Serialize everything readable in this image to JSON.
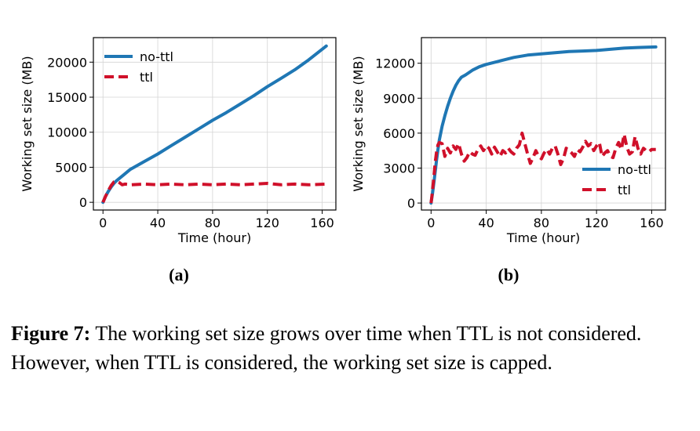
{
  "colors": {
    "no_ttl": "#1f77b4",
    "ttl": "#d0102a"
  },
  "figure": {
    "panel_a_label": "(a)",
    "panel_b_label": "(b)",
    "caption_prefix": "Figure 7:",
    "caption_text": " The working set size grows over time when TTL is not considered. However, when TTL is considered, the working set size is capped."
  },
  "chart_data": [
    {
      "type": "line",
      "xlabel": "Time (hour)",
      "ylabel": "Working set size (MB)",
      "xlim": [
        -7,
        170
      ],
      "ylim": [
        -1100,
        23500
      ],
      "xticks": [
        0,
        40,
        80,
        120,
        160
      ],
      "yticks": [
        0,
        5000,
        10000,
        15000,
        20000
      ],
      "grid": true,
      "legend_position": "top-left",
      "series": [
        {
          "name": "no-ttl",
          "style": "solid",
          "x": [
            0,
            2,
            4,
            6,
            8,
            10,
            15,
            20,
            30,
            40,
            50,
            60,
            70,
            80,
            90,
            100,
            110,
            120,
            130,
            140,
            150,
            163
          ],
          "y": [
            0,
            900,
            1600,
            2200,
            2700,
            3100,
            3900,
            4700,
            5800,
            6900,
            8100,
            9300,
            10500,
            11700,
            12800,
            14000,
            15200,
            16500,
            17700,
            18900,
            20300,
            22300
          ]
        },
        {
          "name": "ttl",
          "style": "dashed",
          "x": [
            0,
            2,
            4,
            6,
            8,
            10,
            12,
            14,
            16,
            20,
            30,
            40,
            50,
            60,
            70,
            80,
            90,
            100,
            110,
            120,
            130,
            140,
            150,
            163
          ],
          "y": [
            0,
            900,
            1700,
            2400,
            2900,
            3000,
            2800,
            2500,
            2600,
            2500,
            2600,
            2500,
            2600,
            2500,
            2600,
            2500,
            2600,
            2500,
            2600,
            2700,
            2500,
            2600,
            2500,
            2600
          ]
        }
      ]
    },
    {
      "type": "line",
      "xlabel": "Time (hour)",
      "ylabel": "Working set size (MB)",
      "xlim": [
        -7,
        170
      ],
      "ylim": [
        -600,
        14200
      ],
      "xticks": [
        0,
        40,
        80,
        120,
        160
      ],
      "yticks": [
        0,
        3000,
        6000,
        9000,
        12000
      ],
      "grid": true,
      "legend_position": "lower-right",
      "series": [
        {
          "name": "no-ttl",
          "style": "solid",
          "x": [
            0,
            1,
            2,
            3,
            4,
            5,
            6,
            8,
            10,
            12,
            14,
            16,
            18,
            20,
            22,
            25,
            30,
            35,
            40,
            50,
            60,
            70,
            80,
            90,
            100,
            110,
            120,
            130,
            140,
            150,
            163
          ],
          "y": [
            0,
            800,
            1700,
            2700,
            3700,
            4600,
            5400,
            6600,
            7500,
            8300,
            9000,
            9600,
            10100,
            10500,
            10800,
            11000,
            11400,
            11700,
            11900,
            12200,
            12500,
            12700,
            12800,
            12900,
            13000,
            13050,
            13100,
            13200,
            13300,
            13350,
            13400
          ]
        },
        {
          "name": "ttl",
          "style": "dashed",
          "x": [
            0,
            1,
            2,
            3,
            4,
            5,
            6,
            8,
            10,
            12,
            14,
            16,
            18,
            20,
            22,
            24,
            26,
            28,
            30,
            32,
            34,
            36,
            38,
            40,
            42,
            44,
            46,
            48,
            50,
            52,
            54,
            56,
            58,
            60,
            62,
            64,
            66,
            68,
            70,
            72,
            74,
            76,
            78,
            80,
            82,
            84,
            86,
            88,
            90,
            92,
            94,
            96,
            98,
            100,
            102,
            104,
            106,
            108,
            110,
            112,
            114,
            116,
            118,
            120,
            122,
            124,
            126,
            128,
            130,
            132,
            134,
            136,
            138,
            140,
            142,
            144,
            146,
            148,
            150,
            152,
            154,
            156,
            158,
            160,
            163
          ],
          "y": [
            0,
            1000,
            2200,
            3500,
            4400,
            5000,
            5200,
            5100,
            4000,
            4700,
            4300,
            4900,
            4600,
            5100,
            4200,
            3600,
            3900,
            4400,
            4200,
            4100,
            4600,
            4900,
            4500,
            4900,
            4700,
            4200,
            4800,
            4400,
            4000,
            4500,
            4300,
            4700,
            4400,
            4200,
            4700,
            5000,
            6000,
            5100,
            4200,
            3400,
            3900,
            4500,
            4000,
            3800,
            4300,
            4600,
            4200,
            4700,
            4900,
            4200,
            3300,
            3800,
            4700,
            4500,
            4300,
            4000,
            4600,
            4400,
            4800,
            5300,
            4900,
            5100,
            4500,
            4900,
            5200,
            4000,
            4300,
            4500,
            4000,
            3900,
            4700,
            5200,
            4600,
            5900,
            4800,
            4200,
            4400,
            5700,
            4700,
            4200,
            4700,
            4500,
            4400,
            4600,
            4600
          ]
        }
      ]
    }
  ]
}
